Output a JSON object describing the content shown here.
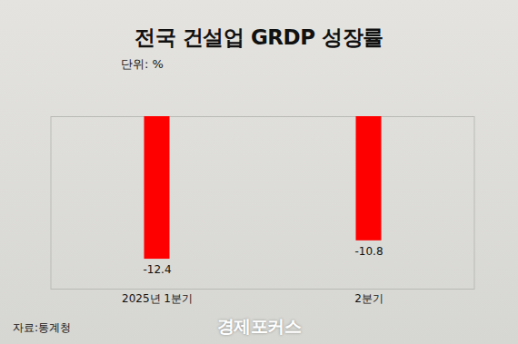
{
  "chart_data": {
    "type": "bar",
    "title": "전국 건설업 GRDP 성장률",
    "subtitle": "단위: %",
    "categories": [
      "2025년 1분기",
      "2분기"
    ],
    "values": [
      -12.4,
      -10.8
    ],
    "color": "#ff0000",
    "ylim": [
      -15,
      0
    ],
    "yticks": [],
    "tick_labels": "x",
    "data_labels": true,
    "grid": false,
    "source": "자료:통계청",
    "annotations": [
      "경제포커스"
    ]
  }
}
